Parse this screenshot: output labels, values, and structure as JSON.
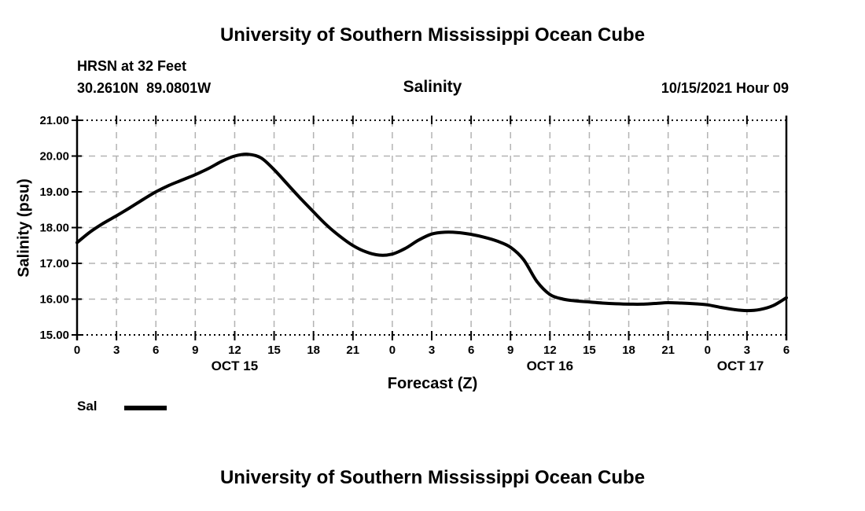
{
  "page": {
    "top_title": "University of Southern Mississippi Ocean Cube",
    "bottom_title": "University of Southern Mississippi Ocean Cube"
  },
  "header": {
    "station": "HRSN at 32 Feet",
    "coordinates": "30.2610N  89.0801W",
    "run_label": "10/15/2021 Hour 09"
  },
  "chart_data": {
    "type": "line",
    "title": "Salinity",
    "xlabel": "Forecast (Z)",
    "ylabel": "Salinity (psu)",
    "ylim": [
      15,
      21
    ],
    "x_range_hours": [
      0,
      54
    ],
    "grid": true,
    "y_ticks": [
      {
        "value": 21,
        "label": "21.00"
      },
      {
        "value": 20,
        "label": "20.00"
      },
      {
        "value": 19,
        "label": "19.00"
      },
      {
        "value": 18,
        "label": "18.00"
      },
      {
        "value": 17,
        "label": "17.00"
      },
      {
        "value": 16,
        "label": "16.00"
      },
      {
        "value": 15,
        "label": "15.00"
      }
    ],
    "x_ticks": [
      {
        "hour": 0,
        "label": "0"
      },
      {
        "hour": 3,
        "label": "3"
      },
      {
        "hour": 6,
        "label": "6"
      },
      {
        "hour": 9,
        "label": "9"
      },
      {
        "hour": 12,
        "label": "12"
      },
      {
        "hour": 15,
        "label": "15"
      },
      {
        "hour": 18,
        "label": "18"
      },
      {
        "hour": 21,
        "label": "21"
      },
      {
        "hour": 24,
        "label": "0"
      },
      {
        "hour": 27,
        "label": "3"
      },
      {
        "hour": 30,
        "label": "6"
      },
      {
        "hour": 33,
        "label": "9"
      },
      {
        "hour": 36,
        "label": "12"
      },
      {
        "hour": 39,
        "label": "15"
      },
      {
        "hour": 42,
        "label": "18"
      },
      {
        "hour": 45,
        "label": "21"
      },
      {
        "hour": 48,
        "label": "0"
      },
      {
        "hour": 51,
        "label": "3"
      },
      {
        "hour": 54,
        "label": "6"
      }
    ],
    "date_labels": [
      {
        "label": "OCT 15",
        "hour": 12
      },
      {
        "label": "OCT 16",
        "hour": 36
      },
      {
        "label": "OCT 17",
        "hour": 50.5
      }
    ],
    "series": [
      {
        "name": "Sal",
        "x_hours": [
          0,
          1,
          2,
          3,
          4,
          5,
          6,
          7,
          8,
          9,
          10,
          11,
          12,
          13,
          14,
          15,
          16,
          17,
          18,
          19,
          20,
          21,
          22,
          23,
          24,
          25,
          26,
          27,
          28,
          29,
          30,
          31,
          32,
          33,
          34,
          35,
          36,
          37,
          38,
          39,
          40,
          41,
          42,
          43,
          44,
          45,
          46,
          47,
          48,
          49,
          50,
          51,
          52,
          53,
          54
        ],
        "values": [
          17.58,
          17.88,
          18.12,
          18.33,
          18.55,
          18.78,
          19.0,
          19.18,
          19.33,
          19.48,
          19.65,
          19.85,
          20.0,
          20.05,
          19.95,
          19.62,
          19.22,
          18.82,
          18.44,
          18.07,
          17.76,
          17.5,
          17.32,
          17.23,
          17.26,
          17.42,
          17.65,
          17.82,
          17.87,
          17.86,
          17.81,
          17.73,
          17.62,
          17.45,
          17.1,
          16.5,
          16.13,
          16.0,
          15.95,
          15.92,
          15.89,
          15.87,
          15.86,
          15.86,
          15.88,
          15.9,
          15.89,
          15.87,
          15.84,
          15.77,
          15.71,
          15.68,
          15.71,
          15.82,
          16.04
        ]
      }
    ],
    "colors": {
      "line": "#000000",
      "grid": "#b3b3b3",
      "axis": "#000000"
    },
    "legend_position": "bottom-left"
  }
}
